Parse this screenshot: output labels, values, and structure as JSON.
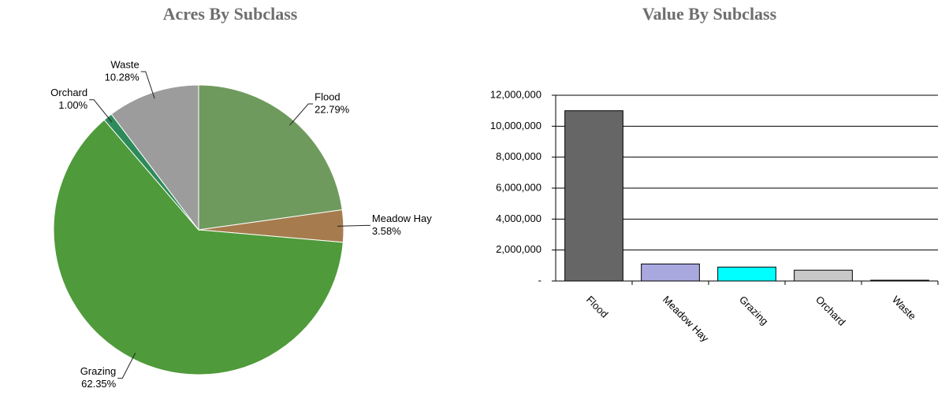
{
  "chart_data": [
    {
      "type": "pie",
      "title": "Acres By Subclass",
      "categories": [
        "Flood",
        "Meadow Hay",
        "Grazing",
        "Orchard",
        "Waste"
      ],
      "values": [
        22.79,
        3.58,
        62.35,
        1.0,
        10.28
      ],
      "value_labels": [
        "22.79%",
        "3.58%",
        "62.35%",
        "1.00%",
        "10.28%"
      ],
      "colors": [
        "#6f9a5e",
        "#a67c4e",
        "#4f9a3a",
        "#2e8a5a",
        "#9c9c9c"
      ]
    },
    {
      "type": "bar",
      "title": "Value By Subclass",
      "categories": [
        "Flood",
        "Meadow Hay",
        "Grazing",
        "Orchard",
        "Waste"
      ],
      "values": [
        11000000,
        1100000,
        900000,
        700000,
        50000
      ],
      "colors": [
        "#666666",
        "#a9a9e0",
        "#00ffff",
        "#c8c8c8",
        "#404040"
      ],
      "ylim": [
        0,
        12000000
      ],
      "yticks": [
        {
          "value": 0,
          "label": "-"
        },
        {
          "value": 2000000,
          "label": "2,000,000"
        },
        {
          "value": 4000000,
          "label": "4,000,000"
        },
        {
          "value": 6000000,
          "label": "6,000,000"
        },
        {
          "value": 8000000,
          "label": "8,000,000"
        },
        {
          "value": 10000000,
          "label": "10,000,000"
        },
        {
          "value": 12000000,
          "label": "12,000,000"
        }
      ],
      "grid": true
    }
  ]
}
